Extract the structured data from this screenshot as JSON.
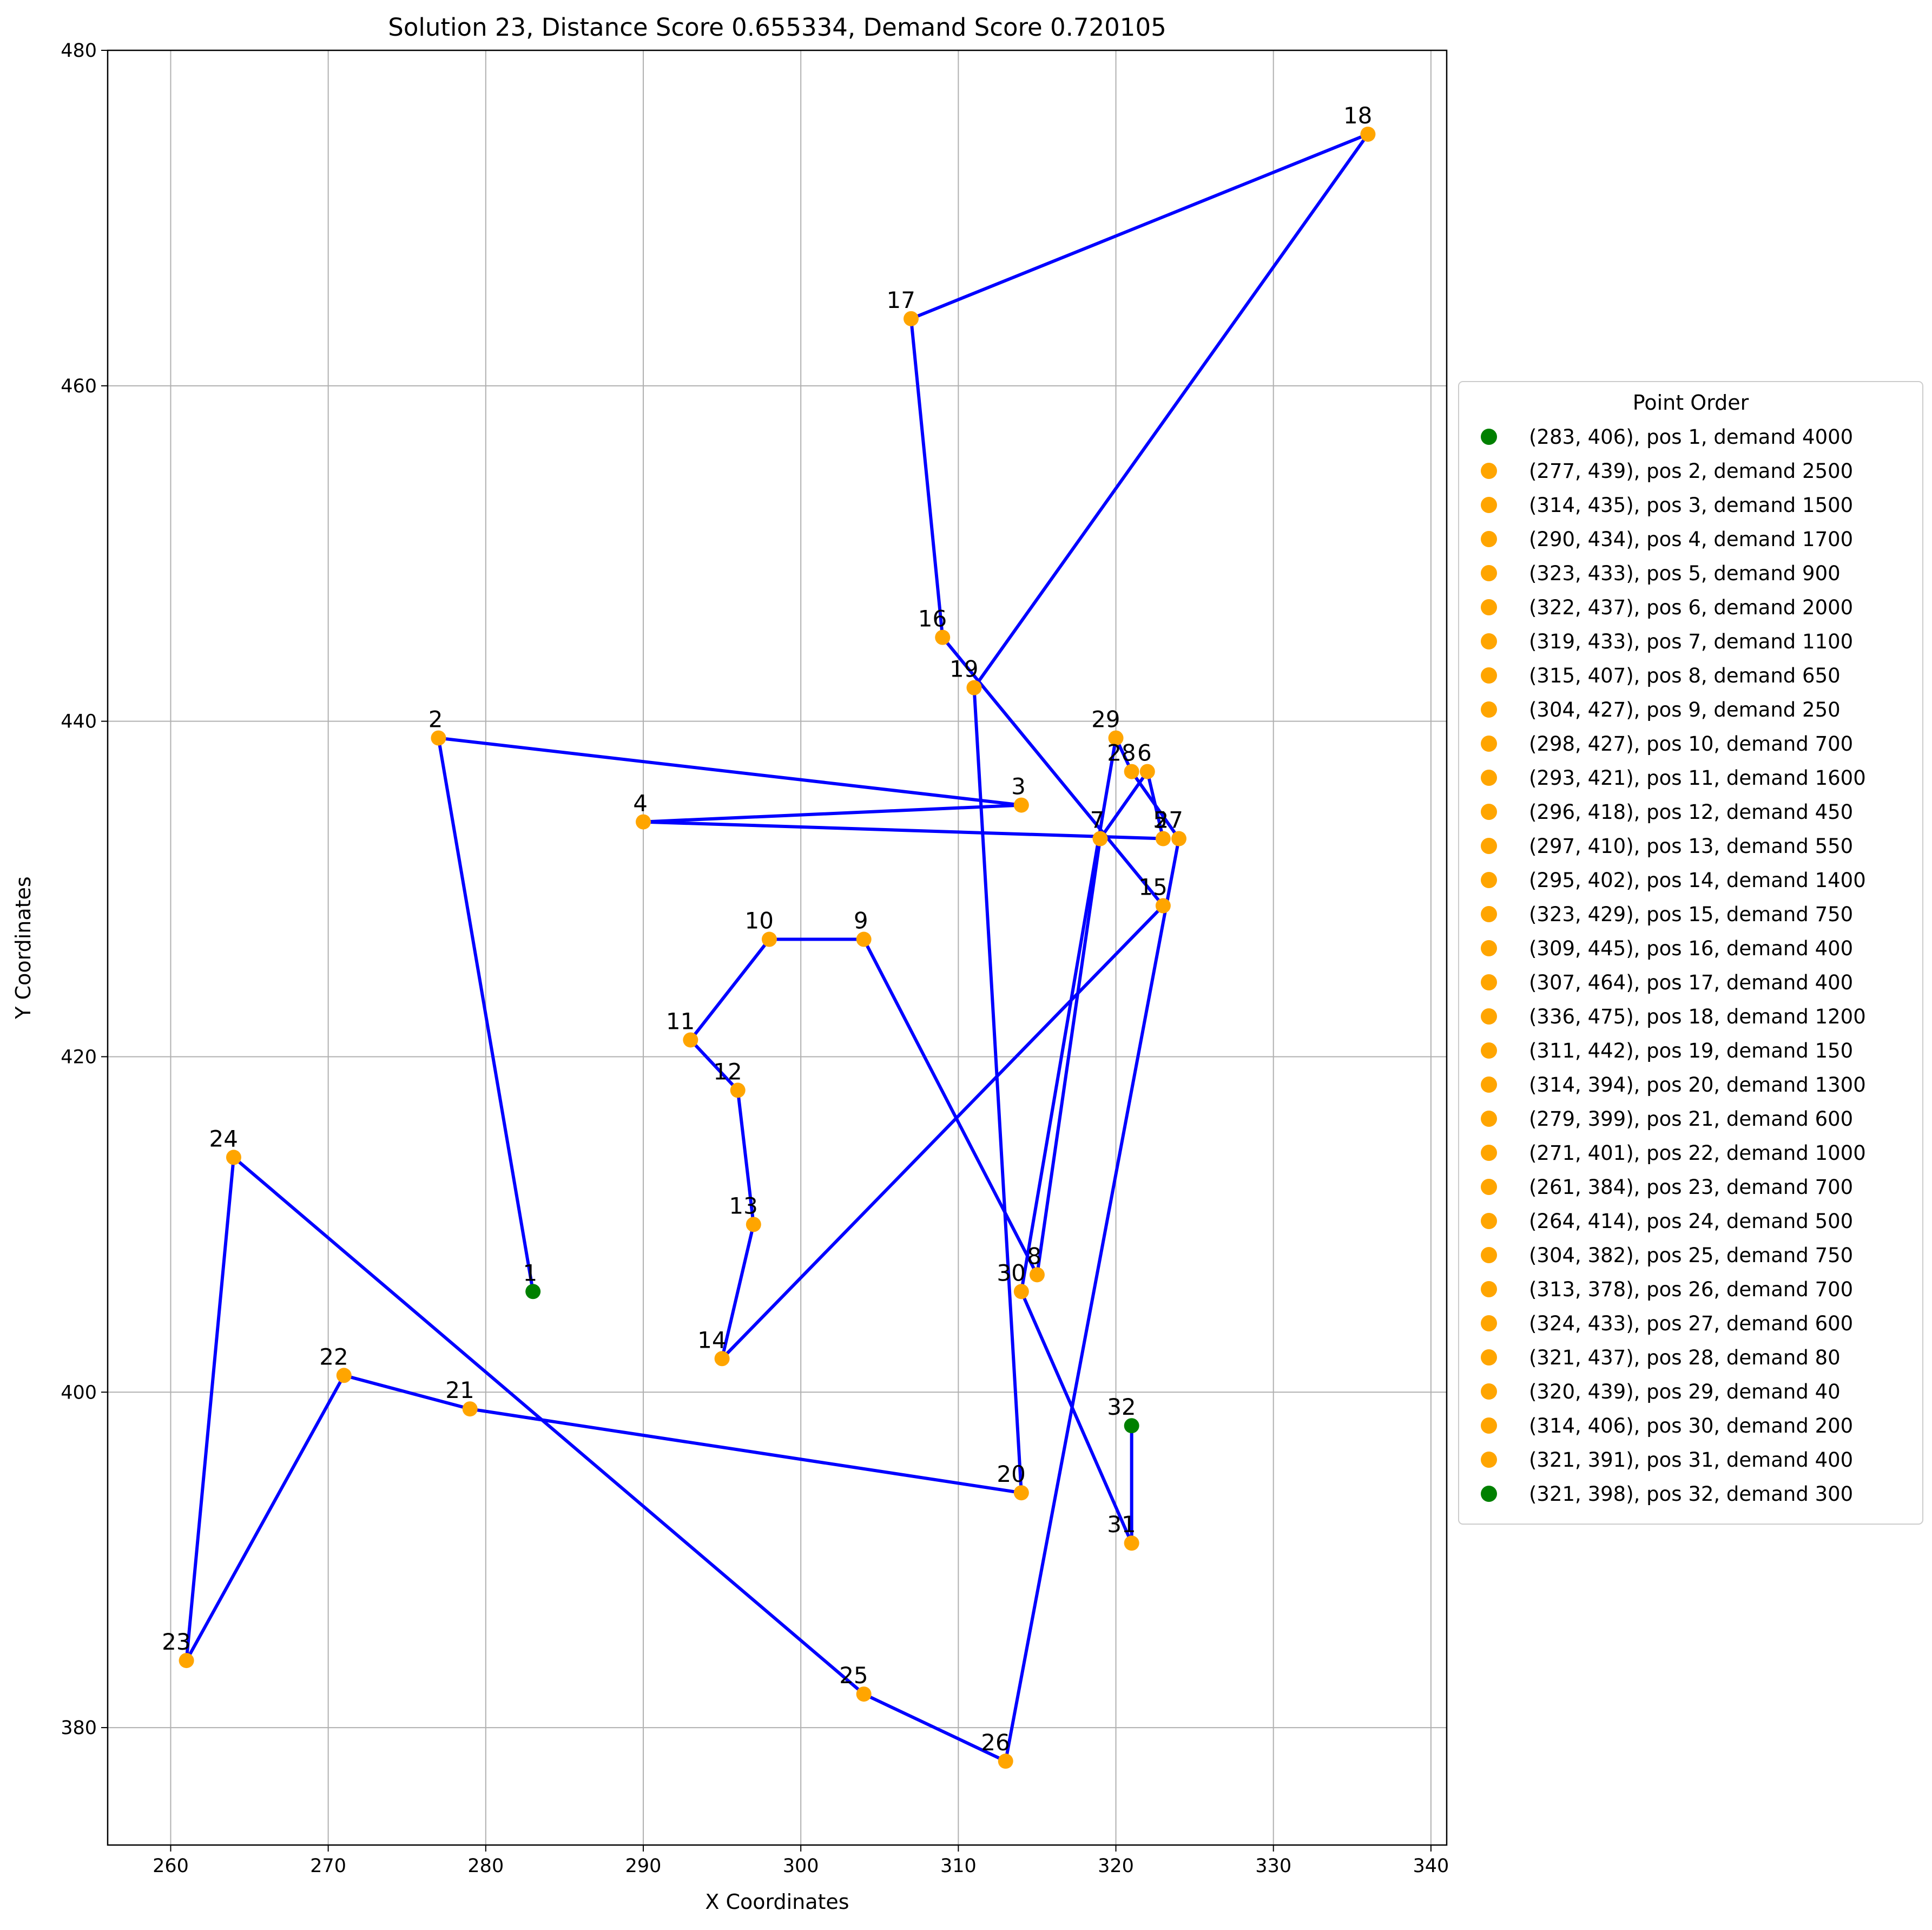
{
  "chart_data": {
    "type": "scatter",
    "title": "Solution 23, Distance Score 0.655334, Demand Score  0.720105",
    "xlabel": "X Coordinates",
    "ylabel": "Y Coordinates",
    "xlim": [
      256,
      341
    ],
    "ylim": [
      373,
      480
    ],
    "xticks": [
      260,
      270,
      280,
      290,
      300,
      310,
      320,
      330,
      340
    ],
    "yticks": [
      380,
      400,
      420,
      440,
      460,
      480
    ],
    "grid": true,
    "legend": {
      "title": "Point Order",
      "placement": "outside-right"
    },
    "route_color": "#0000ff",
    "start_end_color": "#008000",
    "point_color": "#ffa500",
    "points": [
      {
        "pos": 1,
        "x": 283,
        "y": 406,
        "demand": 4000,
        "label": "(283, 406), pos 1, demand 4000"
      },
      {
        "pos": 2,
        "x": 277,
        "y": 439,
        "demand": 2500,
        "label": "(277, 439), pos 2, demand 2500"
      },
      {
        "pos": 3,
        "x": 314,
        "y": 435,
        "demand": 1500,
        "label": "(314, 435), pos 3, demand 1500"
      },
      {
        "pos": 4,
        "x": 290,
        "y": 434,
        "demand": 1700,
        "label": "(290, 434), pos 4, demand 1700"
      },
      {
        "pos": 5,
        "x": 323,
        "y": 433,
        "demand": 900,
        "label": "(323, 433), pos 5, demand 900"
      },
      {
        "pos": 6,
        "x": 322,
        "y": 437,
        "demand": 2000,
        "label": "(322, 437), pos 6, demand 2000"
      },
      {
        "pos": 7,
        "x": 319,
        "y": 433,
        "demand": 1100,
        "label": "(319, 433), pos 7, demand 1100"
      },
      {
        "pos": 8,
        "x": 315,
        "y": 407,
        "demand": 650,
        "label": "(315, 407), pos 8, demand 650"
      },
      {
        "pos": 9,
        "x": 304,
        "y": 427,
        "demand": 250,
        "label": "(304, 427), pos 9, demand 250"
      },
      {
        "pos": 10,
        "x": 298,
        "y": 427,
        "demand": 700,
        "label": "(298, 427), pos 10, demand 700"
      },
      {
        "pos": 11,
        "x": 293,
        "y": 421,
        "demand": 1600,
        "label": "(293, 421), pos 11, demand 1600"
      },
      {
        "pos": 12,
        "x": 296,
        "y": 418,
        "demand": 450,
        "label": "(296, 418), pos 12, demand 450"
      },
      {
        "pos": 13,
        "x": 297,
        "y": 410,
        "demand": 550,
        "label": "(297, 410), pos 13, demand 550"
      },
      {
        "pos": 14,
        "x": 295,
        "y": 402,
        "demand": 1400,
        "label": "(295, 402), pos 14, demand 1400"
      },
      {
        "pos": 15,
        "x": 323,
        "y": 429,
        "demand": 750,
        "label": "(323, 429), pos 15, demand 750"
      },
      {
        "pos": 16,
        "x": 309,
        "y": 445,
        "demand": 400,
        "label": "(309, 445), pos 16, demand 400"
      },
      {
        "pos": 17,
        "x": 307,
        "y": 464,
        "demand": 400,
        "label": "(307, 464), pos 17, demand 400"
      },
      {
        "pos": 18,
        "x": 336,
        "y": 475,
        "demand": 1200,
        "label": "(336, 475), pos 18, demand 1200"
      },
      {
        "pos": 19,
        "x": 311,
        "y": 442,
        "demand": 150,
        "label": "(311, 442), pos 19, demand 150"
      },
      {
        "pos": 20,
        "x": 314,
        "y": 394,
        "demand": 1300,
        "label": "(314, 394), pos 20, demand 1300"
      },
      {
        "pos": 21,
        "x": 279,
        "y": 399,
        "demand": 600,
        "label": "(279, 399), pos 21, demand 600"
      },
      {
        "pos": 22,
        "x": 271,
        "y": 401,
        "demand": 1000,
        "label": "(271, 401), pos 22, demand 1000"
      },
      {
        "pos": 23,
        "x": 261,
        "y": 384,
        "demand": 700,
        "label": "(261, 384), pos 23, demand 700"
      },
      {
        "pos": 24,
        "x": 264,
        "y": 414,
        "demand": 500,
        "label": "(264, 414), pos 24, demand 500"
      },
      {
        "pos": 25,
        "x": 304,
        "y": 382,
        "demand": 750,
        "label": "(304, 382), pos 25, demand 750"
      },
      {
        "pos": 26,
        "x": 313,
        "y": 378,
        "demand": 700,
        "label": "(313, 378), pos 26, demand 700"
      },
      {
        "pos": 27,
        "x": 324,
        "y": 433,
        "demand": 600,
        "label": "(324, 433), pos 27, demand 600"
      },
      {
        "pos": 28,
        "x": 321,
        "y": 437,
        "demand": 80,
        "label": "(321, 437), pos 28, demand 80"
      },
      {
        "pos": 29,
        "x": 320,
        "y": 439,
        "demand": 40,
        "label": "(320, 439), pos 29, demand 40"
      },
      {
        "pos": 30,
        "x": 314,
        "y": 406,
        "demand": 200,
        "label": "(314, 406), pos 30, demand 200"
      },
      {
        "pos": 31,
        "x": 321,
        "y": 391,
        "demand": 400,
        "label": "(321, 391), pos 31, demand 400"
      },
      {
        "pos": 32,
        "x": 321,
        "y": 398,
        "demand": 300,
        "label": "(321, 398), pos 32, demand 300"
      }
    ]
  }
}
